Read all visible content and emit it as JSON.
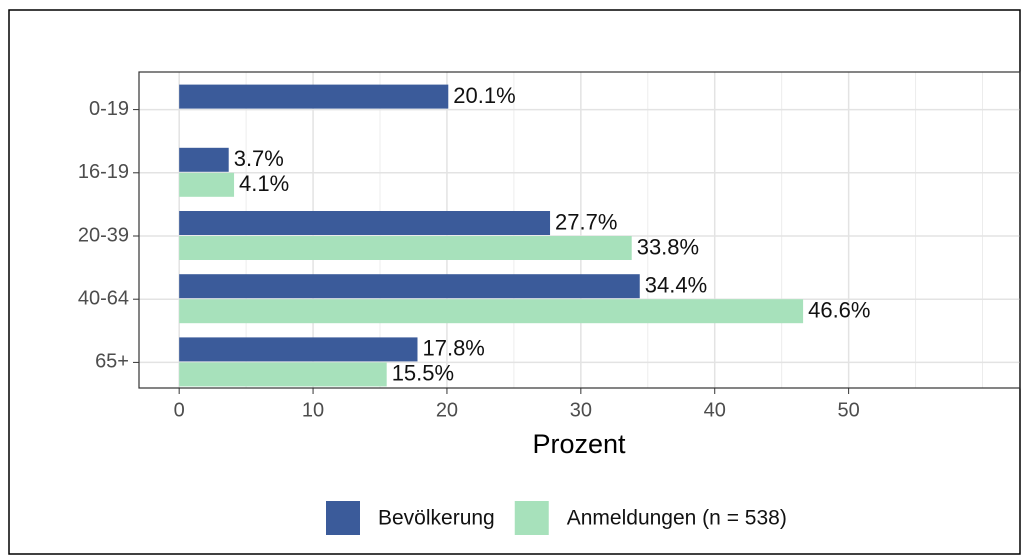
{
  "chart_data": {
    "type": "bar",
    "orientation": "horizontal",
    "x_label": "Prozent",
    "categories": [
      "0-19",
      "16-19",
      "20-39",
      "40-64",
      "65+"
    ],
    "series": [
      {
        "name": "Bevölkerung",
        "color": "#3b5b9a",
        "values": [
          20.1,
          3.7,
          27.7,
          34.4,
          17.8
        ],
        "value_labels": [
          "20.1%",
          "3.7%",
          "27.7%",
          "34.4%",
          "17.8%"
        ]
      },
      {
        "name": "Anmeldungen (n = 538)",
        "color": "#a7e1bb",
        "values": [
          null,
          4.1,
          33.8,
          46.6,
          15.5
        ],
        "value_labels": [
          null,
          "4.1%",
          "33.8%",
          "46.6%",
          "15.5%"
        ]
      }
    ],
    "xlim": [
      -3,
      62.8
    ],
    "xticks": [
      0,
      10,
      20,
      30,
      40,
      50
    ],
    "grid": true,
    "legend": "bottom"
  }
}
